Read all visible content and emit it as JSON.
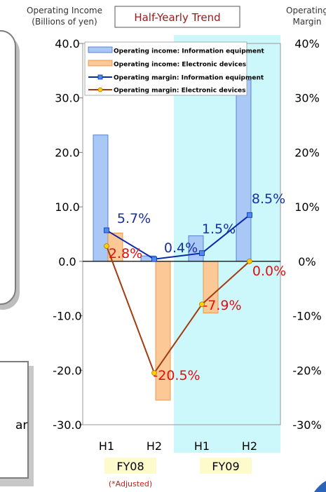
{
  "chart_data": {
    "type": "bar",
    "title": "Half-Yearly Trend",
    "ylabel_left": "Operating Income\n(Billions of yen)",
    "ylabel_right": "Operating\nMargin",
    "ylim_left": [
      -30,
      40
    ],
    "ylim_right": [
      -30,
      40
    ],
    "left_ticks": [
      "40.0",
      "30.0",
      "20.0",
      "10.0",
      "0.0",
      "-10.0",
      "-20.0",
      "-30.0"
    ],
    "right_ticks": [
      "40%",
      "30%",
      "20%",
      "10%",
      "0%",
      "-10%",
      "-20%",
      "-30%"
    ],
    "categories": [
      "H1",
      "H2",
      "H1",
      "H2"
    ],
    "groups": [
      {
        "label": "FY08",
        "note": "(*Adjusted)"
      },
      {
        "label": "FY09"
      }
    ],
    "series": [
      {
        "name": "Operating income: Information equipment",
        "kind": "bar",
        "values": [
          23.2,
          1.0,
          4.7,
          33.3
        ]
      },
      {
        "name": "Operating income: Electronic devices",
        "kind": "bar",
        "values": [
          5.2,
          -25.5,
          -9.5,
          0.0
        ]
      },
      {
        "name": "Operating margin: Information equipment",
        "kind": "line",
        "values": [
          5.7,
          0.4,
          1.5,
          8.5
        ],
        "labels": [
          "5.7%",
          "0.4%",
          "1.5%",
          "8.5%"
        ]
      },
      {
        "name": "Operating margin: Electronic devices",
        "kind": "line",
        "values": [
          2.8,
          -20.5,
          -7.9,
          0.0
        ],
        "labels": [
          "2.8%",
          "-20.5%",
          "-7.9%",
          "0.0%"
        ]
      }
    ],
    "highlight_group": "FY09",
    "left_fragment_text": "ar",
    "colors": {
      "bar_info": "#a9c8f5",
      "bar_info_border": "#3f6fc4",
      "bar_elec": "#fcc996",
      "bar_elec_border": "#e08a3a",
      "line_info": "#0a2aa8",
      "line_elec": "#a33a10",
      "marker_elec": "#ffd000",
      "label_elec": "#e01010",
      "label_info": "#1a2fa0",
      "highlight": "#ccf7fb",
      "title_text": "#a01818",
      "note_text": "#cc1a1a",
      "group_fill": "#fdfbcc"
    }
  }
}
